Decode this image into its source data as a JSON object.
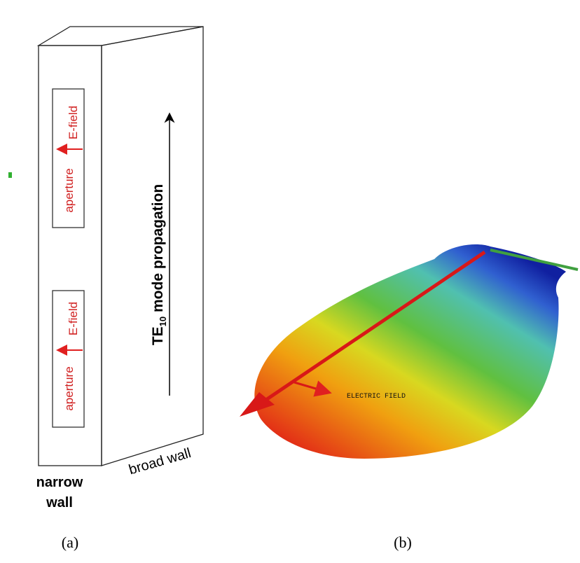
{
  "panel_a": {
    "apertures": [
      {
        "field_label": "E-field",
        "label": "aperture"
      },
      {
        "field_label": "E-field",
        "label": "aperture"
      }
    ],
    "mode_label": {
      "main": "TE",
      "subscript": "10",
      "rest": " mode propagation"
    },
    "narrow_wall": [
      "narrow",
      "wall"
    ],
    "broad_wall": "broad wall",
    "caption": "(a)"
  },
  "panel_b": {
    "field_label": "ELECTRIC FIELD",
    "caption": "(b)"
  }
}
